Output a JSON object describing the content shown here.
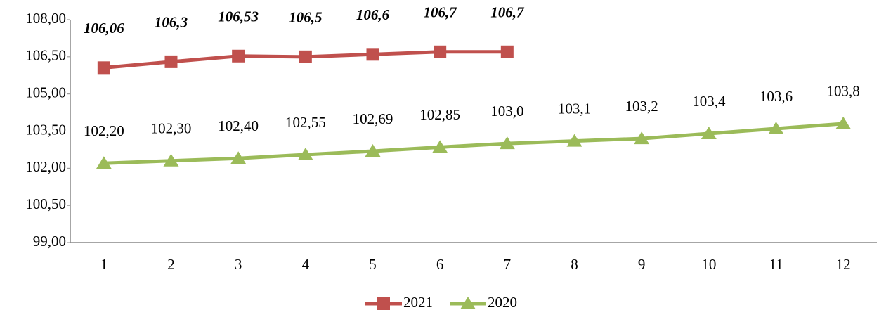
{
  "chart_data": {
    "type": "line",
    "categories": [
      1,
      2,
      3,
      4,
      5,
      6,
      7,
      8,
      9,
      10,
      11,
      12
    ],
    "series": [
      {
        "name": "2021",
        "color": "#c0504d",
        "marker": "square",
        "values": [
          106.06,
          106.3,
          106.53,
          106.5,
          106.6,
          106.7,
          106.7,
          null,
          null,
          null,
          null,
          null
        ],
        "value_labels": [
          "106,06",
          "106,3",
          "106,53",
          "106,5",
          "106,6",
          "106,7",
          "106,7",
          null,
          null,
          null,
          null,
          null
        ]
      },
      {
        "name": "2020",
        "color": "#9bbb59",
        "marker": "triangle",
        "values": [
          102.2,
          102.3,
          102.4,
          102.55,
          102.69,
          102.85,
          103.0,
          103.1,
          103.2,
          103.4,
          103.6,
          103.8
        ],
        "value_labels": [
          "102,20",
          "102,30",
          "102,40",
          "102,55",
          "102,69",
          "102,85",
          "103,0",
          "103,1",
          "103,2",
          "103,4",
          "103,6",
          "103,8"
        ]
      }
    ],
    "ylim": [
      99,
      108
    ],
    "yticks": [
      {
        "value": 99,
        "label": "99,00"
      },
      {
        "value": 100.5,
        "label": "100,50"
      },
      {
        "value": 102,
        "label": "102,00"
      },
      {
        "value": 103.5,
        "label": "103,50"
      },
      {
        "value": 105,
        "label": "105,00"
      },
      {
        "value": 106.5,
        "label": "106,50"
      },
      {
        "value": 108,
        "label": "108,00"
      }
    ],
    "grid": false,
    "legend": "bottom"
  }
}
